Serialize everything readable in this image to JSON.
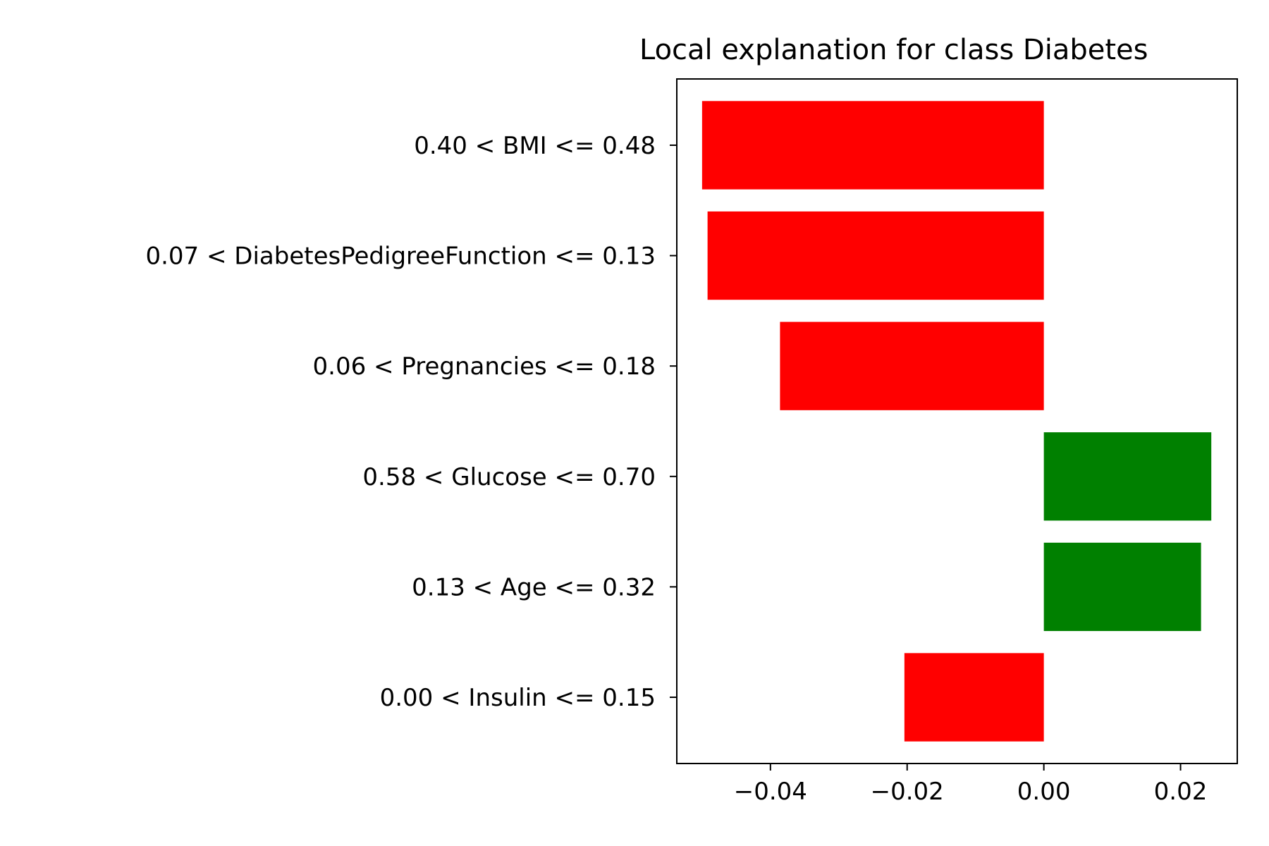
{
  "chart_data": {
    "type": "bar",
    "orientation": "horizontal",
    "title": "Local explanation for class Diabetes",
    "xlabel": "",
    "ylabel": "",
    "categories": [
      "0.40 < BMI <= 0.48",
      "0.07 < DiabetesPedigreeFunction <= 0.13",
      "0.06 < Pregnancies <= 0.18",
      "0.58 < Glucose <= 0.70",
      "0.13 < Age <= 0.32",
      "0.00 < Insulin <= 0.15"
    ],
    "values": [
      -0.05,
      -0.0492,
      -0.0386,
      0.0245,
      0.023,
      -0.0204
    ],
    "xlim": [
      -0.0537,
      0.0283
    ],
    "xticks": [
      -0.04,
      -0.02,
      0.0,
      0.02
    ],
    "xtick_labels": [
      "−0.04",
      "−0.02",
      "0.00",
      "0.02"
    ],
    "colors": {
      "positive": "#008000",
      "negative": "#ff0000",
      "frame": "#000000"
    },
    "grid": false,
    "legend": "none"
  }
}
